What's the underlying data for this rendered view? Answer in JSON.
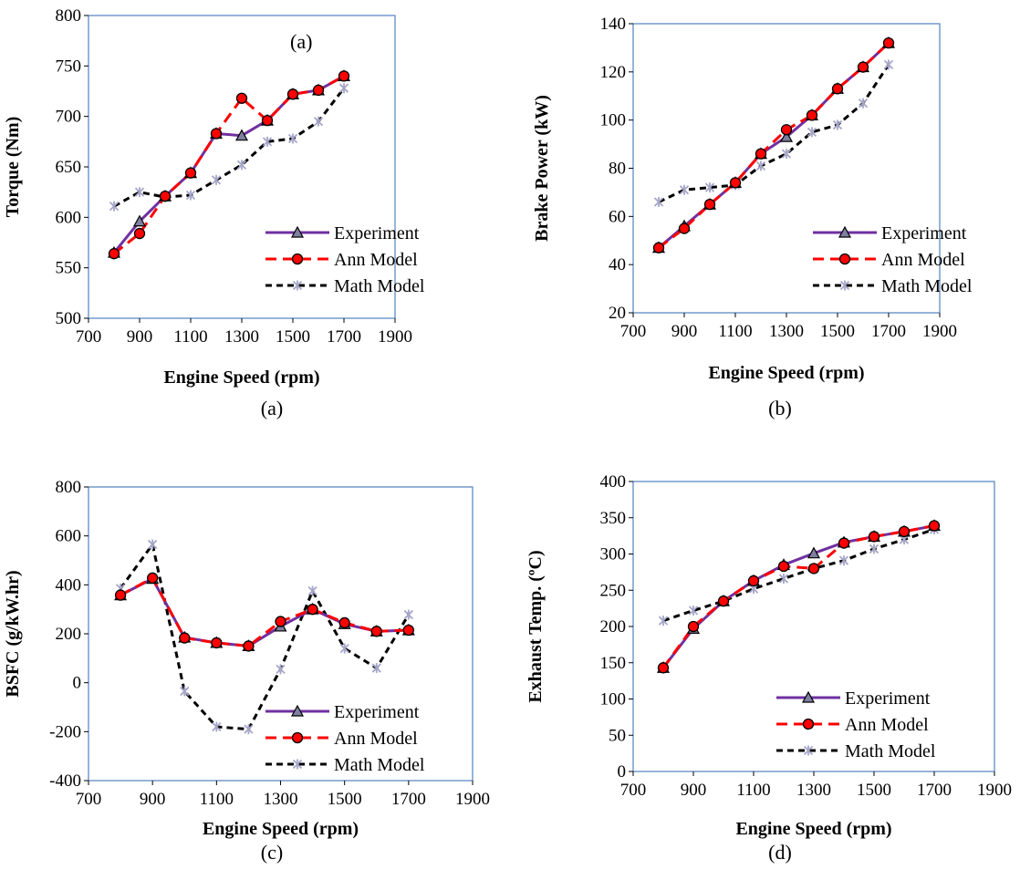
{
  "colors": {
    "experiment": "#7030A0",
    "ann": "#FF0000",
    "math": "#000000",
    "plot_border": "#4F81BD",
    "marker_math": "#A5A5C8"
  },
  "chart_data": [
    {
      "type": "line",
      "caption": "(a)",
      "inner_label": "(a)",
      "xlabel": "Engine Speed (rpm)",
      "ylabel": "Torque (Nm)",
      "xlim": [
        700,
        1900
      ],
      "ylim": [
        500,
        800
      ],
      "x_ticks": [
        "700",
        "900",
        "1100",
        "1300",
        "1500",
        "1700",
        "1900"
      ],
      "y_ticks": [
        "500",
        "550",
        "600",
        "650",
        "700",
        "750",
        "800"
      ],
      "x": [
        800,
        900,
        1000,
        1100,
        1200,
        1300,
        1400,
        1500,
        1600,
        1700
      ],
      "legend_position": "lower-right",
      "series": [
        {
          "name": "Experiment",
          "values": [
            565,
            596,
            621,
            644,
            683,
            681,
            696,
            722,
            726,
            740
          ]
        },
        {
          "name": "Ann Model",
          "values": [
            564,
            584,
            621,
            644,
            683,
            718,
            696,
            722,
            726,
            740
          ]
        },
        {
          "name": "Math Model",
          "values": [
            611,
            625,
            620,
            622,
            637,
            652,
            675,
            678,
            695,
            728
          ]
        }
      ]
    },
    {
      "type": "line",
      "caption": "(b)",
      "inner_label": "",
      "xlabel": "Engine Speed (rpm)",
      "ylabel": "Brake Power (kW)",
      "xlim": [
        700,
        1900
      ],
      "ylim": [
        20,
        140
      ],
      "x_ticks": [
        "700",
        "900",
        "1100",
        "1300",
        "1500",
        "1700",
        "1900"
      ],
      "y_ticks": [
        "20",
        "40",
        "60",
        "80",
        "100",
        "120",
        "140"
      ],
      "x": [
        800,
        900,
        1000,
        1100,
        1200,
        1300,
        1400,
        1500,
        1600,
        1700
      ],
      "legend_position": "lower-right",
      "series": [
        {
          "name": "Experiment",
          "values": [
            47,
            56,
            65,
            74,
            86,
            93,
            102,
            113,
            122,
            132
          ]
        },
        {
          "name": "Ann Model",
          "values": [
            47,
            55,
            65,
            74,
            86,
            96,
            102,
            113,
            122,
            132
          ]
        },
        {
          "name": "Math Model",
          "values": [
            66,
            71,
            72,
            73,
            81,
            86,
            95,
            98,
            107,
            123
          ]
        }
      ]
    },
    {
      "type": "line",
      "caption": "(c)",
      "inner_label": "",
      "xlabel": "Engine Speed (rpm)",
      "ylabel": "BSFC (g/kW.hr)",
      "xlim": [
        700,
        1900
      ],
      "ylim": [
        -400,
        800
      ],
      "x_ticks": [
        "700",
        "900",
        "1100",
        "1300",
        "1500",
        "1700",
        "1900"
      ],
      "y_ticks": [
        "-400",
        "-200",
        "0",
        "200",
        "400",
        "600",
        "800"
      ],
      "x": [
        800,
        900,
        1000,
        1100,
        1200,
        1300,
        1400,
        1500,
        1600,
        1700
      ],
      "legend_position": "lower-right",
      "series": [
        {
          "name": "Experiment",
          "values": [
            358,
            425,
            185,
            163,
            150,
            230,
            300,
            240,
            210,
            215
          ]
        },
        {
          "name": "Ann Model",
          "values": [
            358,
            428,
            183,
            163,
            150,
            250,
            300,
            245,
            210,
            215
          ]
        },
        {
          "name": "Math Model",
          "values": [
            385,
            565,
            -35,
            -180,
            -190,
            55,
            375,
            140,
            60,
            278
          ]
        }
      ]
    },
    {
      "type": "line",
      "caption": "(d)",
      "inner_label": "",
      "xlabel": "Engine Speed (rpm)",
      "ylabel": "Exhaust  Temp. (ºC)",
      "xlim": [
        700,
        1900
      ],
      "ylim": [
        0,
        400
      ],
      "x_ticks": [
        "700",
        "900",
        "1100",
        "1300",
        "1500",
        "1700",
        "1900"
      ],
      "y_ticks": [
        "0",
        "50",
        "100",
        "150",
        "200",
        "250",
        "300",
        "350",
        "400"
      ],
      "x": [
        800,
        900,
        1000,
        1100,
        1200,
        1300,
        1400,
        1500,
        1600,
        1700
      ],
      "legend_position": "lower-right",
      "series": [
        {
          "name": "Experiment",
          "values": [
            143,
            197,
            235,
            263,
            285,
            301,
            316,
            324,
            331,
            339
          ]
        },
        {
          "name": "Ann Model",
          "values": [
            143,
            200,
            235,
            263,
            283,
            280,
            315,
            324,
            331,
            339
          ]
        },
        {
          "name": "Math Model",
          "values": [
            208,
            222,
            235,
            252,
            266,
            280,
            291,
            307,
            320,
            334
          ]
        }
      ]
    }
  ]
}
